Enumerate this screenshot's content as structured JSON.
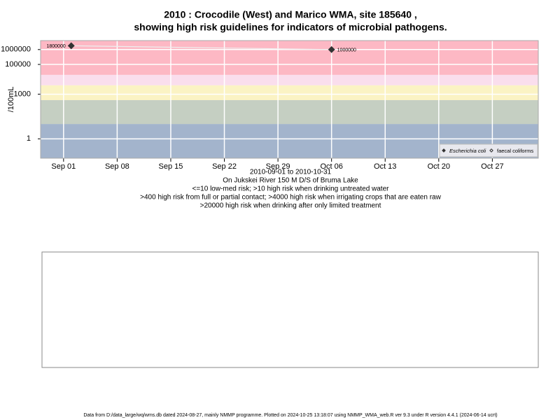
{
  "chart_data": {
    "type": "scatter",
    "title": "2010 : Crocodile (West) and Marico WMA, site 185640 ,",
    "title_line2": "showing high risk guidelines for indicators of microbial pathogens.",
    "y_label": "/100mL",
    "subtitle_lines": [
      "2010-09-01 to 2010-10-31",
      "On Jukskei River 150 M D/S of Bruma Lake",
      "<=10 low-med risk; >10 high risk when drinking untreated water",
      ">400 high risk from full or partial contact; >4000 high risk when irrigating crops that are eaten raw",
      ">20000 high risk when drinking after only limited treatment"
    ],
    "footer": "Data from D:/data_large/wq/wms.db dated 2024-08-27, mainly NMMP programme. Plotted on 2024-10-25 13:18:07 using NMMP_WMA_web.R ver 9.3 under R version 4.4.1 (2024-06-14 ucrt)",
    "log_y": true,
    "grid": true,
    "legend_position": "bottom-right",
    "x": [
      "2010-09-02",
      "2010-10-06"
    ],
    "series": [
      {
        "name": "Escherichia coli",
        "color": "#333333",
        "marker": "filled",
        "values": [
          1800000,
          1000000
        ]
      },
      {
        "name": "faecal coliforms",
        "color": "#333333",
        "marker": "open",
        "values": [
          null,
          null
        ]
      }
    ],
    "xlim": [
      "2010-08-29",
      "2010-11-02"
    ],
    "xticks": [
      {
        "value": "2010-09-01",
        "label": "Sep 01"
      },
      {
        "value": "2010-09-08",
        "label": "Sep 08"
      },
      {
        "value": "2010-09-15",
        "label": "Sep 15"
      },
      {
        "value": "2010-09-22",
        "label": "Sep 22"
      },
      {
        "value": "2010-09-29",
        "label": "Sep 29"
      },
      {
        "value": "2010-10-06",
        "label": "Oct 06"
      },
      {
        "value": "2010-10-13",
        "label": "Oct 13"
      },
      {
        "value": "2010-10-20",
        "label": "Oct 20"
      },
      {
        "value": "2010-10-27",
        "label": "Oct 27"
      }
    ],
    "ylim": [
      0.05,
      4000000
    ],
    "yticks": [
      1,
      1000,
      100000,
      1000000
    ],
    "band_edges": [
      10,
      400,
      4000,
      20000
    ],
    "band_colors": [
      "#a3b4cc",
      "#c5cfc2",
      "#fbf3c4",
      "#fadeed",
      "#fdb8c4"
    ]
  }
}
